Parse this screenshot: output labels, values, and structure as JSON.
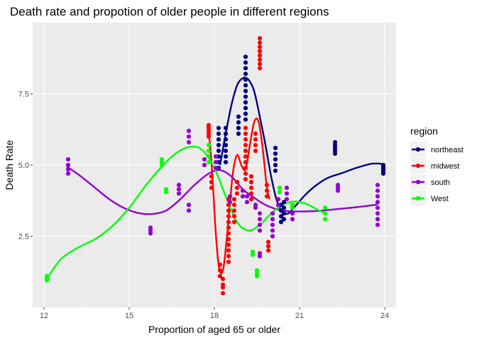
{
  "chart_data": {
    "type": "scatter",
    "title": "Death rate and propotion of older people in different regions",
    "xlabel": "Proportion of aged 65 or older",
    "ylabel": "Death Rate",
    "xlim": [
      11.6,
      24.4
    ],
    "ylim": [
      0.0,
      10.0
    ],
    "x_ticks": [
      12,
      15,
      18,
      21,
      24
    ],
    "x_tick_labels": [
      "12",
      "15",
      "18",
      "21",
      "24"
    ],
    "y_ticks": [
      2.5,
      5.0,
      7.5
    ],
    "y_tick_labels": [
      "2.5",
      "5.0",
      "7.5"
    ],
    "grid": true,
    "legend": {
      "title": "region",
      "position": "right",
      "entries": [
        {
          "label": "northeast",
          "color": "#000080"
        },
        {
          "label": "midwest",
          "color": "#ff0000"
        },
        {
          "label": "south",
          "color": "#9400d3"
        },
        {
          "label": "West",
          "color": "#00ff00"
        }
      ]
    },
    "series": [
      {
        "name": "northeast",
        "color": "#000080",
        "points": [
          [
            18.15,
            6.3
          ],
          [
            18.15,
            6.1
          ],
          [
            18.15,
            5.9
          ],
          [
            18.15,
            5.7
          ],
          [
            18.15,
            5.5
          ],
          [
            18.15,
            5.3
          ],
          [
            18.15,
            5.1
          ],
          [
            18.15,
            4.9
          ],
          [
            18.4,
            6.3
          ],
          [
            18.4,
            6.1
          ],
          [
            18.4,
            5.9
          ],
          [
            18.4,
            5.7
          ],
          [
            18.4,
            5.5
          ],
          [
            18.4,
            5.3
          ],
          [
            18.4,
            5.1
          ],
          [
            18.85,
            6.7
          ],
          [
            18.85,
            6.5
          ],
          [
            18.85,
            6.3
          ],
          [
            18.85,
            6.1
          ],
          [
            19.1,
            8.8
          ],
          [
            19.1,
            8.6
          ],
          [
            19.1,
            8.4
          ],
          [
            19.1,
            8.2
          ],
          [
            19.1,
            8.0
          ],
          [
            19.1,
            7.8
          ],
          [
            19.1,
            7.6
          ],
          [
            19.1,
            7.4
          ],
          [
            19.1,
            7.2
          ],
          [
            19.1,
            7.0
          ],
          [
            19.1,
            6.8
          ],
          [
            19.1,
            6.6
          ],
          [
            20.15,
            5.6
          ],
          [
            20.15,
            5.4
          ],
          [
            20.15,
            5.2
          ],
          [
            20.15,
            5.0
          ],
          [
            20.15,
            4.8
          ],
          [
            20.35,
            3.6
          ],
          [
            20.35,
            3.4
          ],
          [
            20.35,
            3.2
          ],
          [
            20.35,
            3.0
          ],
          [
            20.45,
            3.7
          ],
          [
            20.45,
            3.5
          ],
          [
            20.45,
            3.3
          ],
          [
            20.45,
            3.1
          ],
          [
            22.25,
            5.8
          ],
          [
            22.25,
            5.7
          ],
          [
            22.25,
            5.6
          ],
          [
            22.25,
            5.5
          ],
          [
            22.25,
            5.4
          ],
          [
            23.95,
            5.0
          ],
          [
            23.95,
            4.95
          ],
          [
            23.95,
            4.9
          ],
          [
            23.95,
            4.85
          ],
          [
            23.95,
            4.8
          ],
          [
            23.95,
            4.75
          ],
          [
            23.95,
            4.7
          ]
        ],
        "smooth": [
          [
            18.2,
            5.0
          ],
          [
            18.4,
            6.1
          ],
          [
            18.6,
            7.1
          ],
          [
            18.8,
            7.8
          ],
          [
            19.0,
            8.05
          ],
          [
            19.2,
            8.0
          ],
          [
            19.4,
            7.6
          ],
          [
            19.6,
            6.7
          ],
          [
            19.8,
            5.7
          ],
          [
            20.0,
            4.6
          ],
          [
            20.2,
            3.75
          ],
          [
            20.4,
            3.35
          ],
          [
            20.6,
            3.3
          ],
          [
            20.8,
            3.5
          ],
          [
            21.2,
            3.95
          ],
          [
            21.6,
            4.3
          ],
          [
            22.0,
            4.55
          ],
          [
            22.5,
            4.72
          ],
          [
            23.0,
            4.9
          ],
          [
            23.5,
            5.04
          ],
          [
            23.8,
            5.05
          ],
          [
            24.0,
            5.0
          ]
        ]
      },
      {
        "name": "midwest",
        "color": "#ff0000",
        "points": [
          [
            17.8,
            6.4
          ],
          [
            17.8,
            6.3
          ],
          [
            17.8,
            6.2
          ],
          [
            17.8,
            6.1
          ],
          [
            17.8,
            6.0
          ],
          [
            17.9,
            4.6
          ],
          [
            17.9,
            4.4
          ],
          [
            17.9,
            4.2
          ],
          [
            18.2,
            1.5
          ],
          [
            18.2,
            1.3
          ],
          [
            18.2,
            1.1
          ],
          [
            18.3,
            1.0
          ],
          [
            18.3,
            0.8
          ],
          [
            18.3,
            0.7
          ],
          [
            18.3,
            0.5
          ],
          [
            18.5,
            3.8
          ],
          [
            18.5,
            3.6
          ],
          [
            18.5,
            3.4
          ],
          [
            18.5,
            3.2
          ],
          [
            18.5,
            3.0
          ],
          [
            18.5,
            2.8
          ],
          [
            18.5,
            2.6
          ],
          [
            18.5,
            2.4
          ],
          [
            18.5,
            2.2
          ],
          [
            18.5,
            2.0
          ],
          [
            18.5,
            1.8
          ],
          [
            18.5,
            1.6
          ],
          [
            18.7,
            3.8
          ],
          [
            18.7,
            3.6
          ],
          [
            18.7,
            3.4
          ],
          [
            18.7,
            3.2
          ],
          [
            18.7,
            3.0
          ],
          [
            18.8,
            4.4
          ],
          [
            18.8,
            4.2
          ],
          [
            18.8,
            4.0
          ],
          [
            19.1,
            6.3
          ],
          [
            19.1,
            6.1
          ],
          [
            19.1,
            5.9
          ],
          [
            19.1,
            5.7
          ],
          [
            19.1,
            5.5
          ],
          [
            19.1,
            5.3
          ],
          [
            19.1,
            5.1
          ],
          [
            19.1,
            4.9
          ],
          [
            19.1,
            4.7
          ],
          [
            19.1,
            4.5
          ],
          [
            19.3,
            4.6
          ],
          [
            19.3,
            4.4
          ],
          [
            19.3,
            4.2
          ],
          [
            19.3,
            4.0
          ],
          [
            19.3,
            3.8
          ],
          [
            19.45,
            6.1
          ],
          [
            19.45,
            5.9
          ],
          [
            19.45,
            5.7
          ],
          [
            19.45,
            5.5
          ],
          [
            19.6,
            9.45
          ],
          [
            19.6,
            9.3
          ],
          [
            19.6,
            9.15
          ],
          [
            19.6,
            9.0
          ],
          [
            19.6,
            8.85
          ],
          [
            19.6,
            8.7
          ],
          [
            19.6,
            8.55
          ],
          [
            19.6,
            8.4
          ],
          [
            19.85,
            4.3
          ],
          [
            19.85,
            4.1
          ],
          [
            19.85,
            3.9
          ],
          [
            19.9,
            2.3
          ],
          [
            19.9,
            2.15
          ],
          [
            19.9,
            2.0
          ]
        ],
        "smooth": [
          [
            17.75,
            6.35
          ],
          [
            17.85,
            5.7
          ],
          [
            17.95,
            4.3
          ],
          [
            18.05,
            2.6
          ],
          [
            18.15,
            1.5
          ],
          [
            18.25,
            1.2
          ],
          [
            18.35,
            1.6
          ],
          [
            18.5,
            3.1
          ],
          [
            18.65,
            4.7
          ],
          [
            18.8,
            5.35
          ],
          [
            18.95,
            5.0
          ],
          [
            19.1,
            4.85
          ],
          [
            19.25,
            5.7
          ],
          [
            19.4,
            6.5
          ],
          [
            19.55,
            6.55
          ],
          [
            19.7,
            5.6
          ],
          [
            19.85,
            4.2
          ],
          [
            19.95,
            3.8
          ]
        ]
      },
      {
        "name": "south",
        "color": "#9400d3",
        "points": [
          [
            12.85,
            5.2
          ],
          [
            12.85,
            5.0
          ],
          [
            12.85,
            4.85
          ],
          [
            12.85,
            4.7
          ],
          [
            15.75,
            2.8
          ],
          [
            15.75,
            2.7
          ],
          [
            15.75,
            2.6
          ],
          [
            16.75,
            4.3
          ],
          [
            16.75,
            4.15
          ],
          [
            16.75,
            4.0
          ],
          [
            17.1,
            6.2
          ],
          [
            17.1,
            6.0
          ],
          [
            17.1,
            5.8
          ],
          [
            17.1,
            3.6
          ],
          [
            17.1,
            3.4
          ],
          [
            17.65,
            5.2
          ],
          [
            17.65,
            5.0
          ],
          [
            18.05,
            5.3
          ],
          [
            18.05,
            5.1
          ],
          [
            18.05,
            4.9
          ],
          [
            18.55,
            3.9
          ],
          [
            18.55,
            3.7
          ],
          [
            19.0,
            4.1
          ],
          [
            19.0,
            3.9
          ],
          [
            19.15,
            3.9
          ],
          [
            19.15,
            3.7
          ],
          [
            19.45,
            3.6
          ],
          [
            19.45,
            3.5
          ],
          [
            19.6,
            3.3
          ],
          [
            19.6,
            3.1
          ],
          [
            19.6,
            2.9
          ],
          [
            19.6,
            2.7
          ],
          [
            19.6,
            1.9
          ],
          [
            19.6,
            1.8
          ],
          [
            20.05,
            3.3
          ],
          [
            20.05,
            3.1
          ],
          [
            20.05,
            2.9
          ],
          [
            20.05,
            2.7
          ],
          [
            20.05,
            2.5
          ],
          [
            20.25,
            3.8
          ],
          [
            20.25,
            3.6
          ],
          [
            20.55,
            4.2
          ],
          [
            20.55,
            4.0
          ],
          [
            20.55,
            3.8
          ],
          [
            20.75,
            3.3
          ],
          [
            20.75,
            3.1
          ],
          [
            22.35,
            4.3
          ],
          [
            22.35,
            4.2
          ],
          [
            22.35,
            4.1
          ],
          [
            23.75,
            4.3
          ],
          [
            23.75,
            4.1
          ],
          [
            23.75,
            3.9
          ],
          [
            23.75,
            3.7
          ],
          [
            23.75,
            3.5
          ],
          [
            23.75,
            3.3
          ],
          [
            23.75,
            3.1
          ],
          [
            23.75,
            2.9
          ]
        ],
        "smooth": [
          [
            12.8,
            4.95
          ],
          [
            13.3,
            4.6
          ],
          [
            13.8,
            4.2
          ],
          [
            14.3,
            3.8
          ],
          [
            14.8,
            3.5
          ],
          [
            15.3,
            3.32
          ],
          [
            15.8,
            3.28
          ],
          [
            16.3,
            3.4
          ],
          [
            16.8,
            3.8
          ],
          [
            17.3,
            4.3
          ],
          [
            17.8,
            4.7
          ],
          [
            18.2,
            4.82
          ],
          [
            18.6,
            4.6
          ],
          [
            19.0,
            4.15
          ],
          [
            19.4,
            3.85
          ],
          [
            19.8,
            3.6
          ],
          [
            20.2,
            3.45
          ],
          [
            20.6,
            3.38
          ],
          [
            21.0,
            3.37
          ],
          [
            21.5,
            3.38
          ],
          [
            22.0,
            3.42
          ],
          [
            22.5,
            3.47
          ],
          [
            23.0,
            3.52
          ],
          [
            23.5,
            3.58
          ],
          [
            23.75,
            3.62
          ]
        ]
      },
      {
        "name": "West",
        "color": "#00ff00",
        "points": [
          [
            12.1,
            1.1
          ],
          [
            12.1,
            1.0
          ],
          [
            12.1,
            0.95
          ],
          [
            16.15,
            5.2
          ],
          [
            16.15,
            5.1
          ],
          [
            16.15,
            5.0
          ],
          [
            16.3,
            4.15
          ],
          [
            16.3,
            4.05
          ],
          [
            17.8,
            5.7
          ],
          [
            17.8,
            5.5
          ],
          [
            17.8,
            5.3
          ],
          [
            17.8,
            5.1
          ],
          [
            19.35,
            1.95
          ],
          [
            19.35,
            1.85
          ],
          [
            19.5,
            1.3
          ],
          [
            19.5,
            1.2
          ],
          [
            19.5,
            1.1
          ],
          [
            20.3,
            4.2
          ],
          [
            20.3,
            4.05
          ],
          [
            20.75,
            3.6
          ],
          [
            20.75,
            3.5
          ],
          [
            21.9,
            3.5
          ],
          [
            21.9,
            3.3
          ],
          [
            21.9,
            3.1
          ]
        ],
        "smooth": [
          [
            12.1,
            1.0
          ],
          [
            12.6,
            1.7
          ],
          [
            13.2,
            2.1
          ],
          [
            13.8,
            2.4
          ],
          [
            14.4,
            2.85
          ],
          [
            15.0,
            3.5
          ],
          [
            15.6,
            4.3
          ],
          [
            16.2,
            5.0
          ],
          [
            16.7,
            5.45
          ],
          [
            17.2,
            5.65
          ],
          [
            17.6,
            5.5
          ],
          [
            18.0,
            4.9
          ],
          [
            18.4,
            3.9
          ],
          [
            18.8,
            3.0
          ],
          [
            19.2,
            2.7
          ],
          [
            19.6,
            2.9
          ],
          [
            20.0,
            3.3
          ],
          [
            20.4,
            3.6
          ],
          [
            20.8,
            3.72
          ],
          [
            21.2,
            3.65
          ],
          [
            21.6,
            3.45
          ],
          [
            21.9,
            3.3
          ]
        ]
      }
    ]
  }
}
